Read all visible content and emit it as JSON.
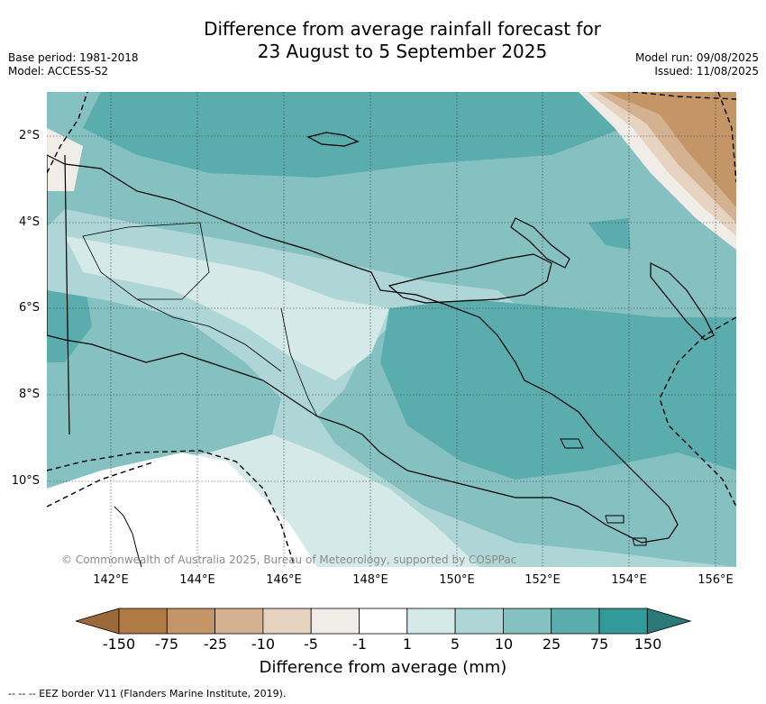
{
  "title_line1": "Difference from average rainfall forecast for",
  "title_line2": "23 August to 5 September 2025",
  "base_period": "Base period: 1981-2018",
  "model": "Model: ACCESS-S2",
  "model_run": "Model run: 09/08/2025",
  "issued": "Issued: 11/08/2025",
  "copyright": "© Commonwealth of Australia 2025, Bureau of Meteorology, supported by COSPPac",
  "lat_labels": [
    "2°S",
    "4°S",
    "6°S",
    "8°S",
    "10°S"
  ],
  "lon_labels": [
    "142°E",
    "144°E",
    "146°E",
    "148°E",
    "150°E",
    "152°E",
    "154°E",
    "156°E"
  ],
  "colorbar": {
    "title": "Difference from average (mm)",
    "ticks": [
      "-150",
      "-75",
      "-25",
      "-10",
      "-5",
      "-1",
      "1",
      "5",
      "10",
      "25",
      "75",
      "150"
    ],
    "colors": [
      "#9c6a3a",
      "#b07a45",
      "#c39567",
      "#d4b191",
      "#e6d3c0",
      "#f0ede8",
      "#ffffff",
      "#d4e9e8",
      "#aed6d6",
      "#86c1c1",
      "#5bacac",
      "#329b99",
      "#2b7a78"
    ]
  },
  "footnote": "-- -- -- EEZ border V11 (Flanders Marine Institute, 2019)."
}
